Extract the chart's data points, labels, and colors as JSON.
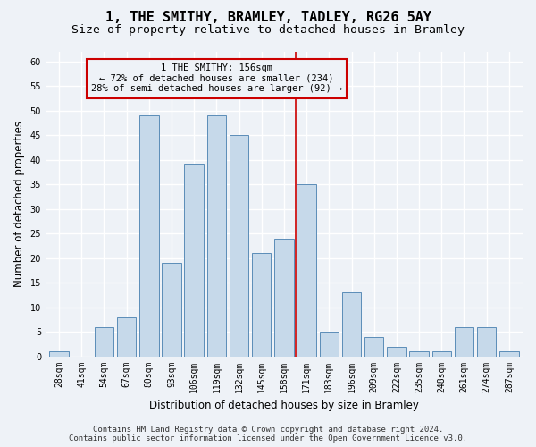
{
  "title1": "1, THE SMITHY, BRAMLEY, TADLEY, RG26 5AY",
  "title2": "Size of property relative to detached houses in Bramley",
  "xlabel": "Distribution of detached houses by size in Bramley",
  "ylabel": "Number of detached properties",
  "categories": [
    "28sqm",
    "41sqm",
    "54sqm",
    "67sqm",
    "80sqm",
    "93sqm",
    "106sqm",
    "119sqm",
    "132sqm",
    "145sqm",
    "158sqm",
    "171sqm",
    "183sqm",
    "196sqm",
    "209sqm",
    "222sqm",
    "235sqm",
    "248sqm",
    "261sqm",
    "274sqm",
    "287sqm"
  ],
  "values": [
    1,
    0,
    6,
    8,
    49,
    19,
    39,
    49,
    45,
    21,
    24,
    35,
    5,
    13,
    4,
    2,
    1,
    1,
    6,
    6,
    1
  ],
  "bar_color": "#c6d9ea",
  "bar_edge_color": "#5b8db8",
  "ylim": [
    0,
    62
  ],
  "yticks": [
    0,
    5,
    10,
    15,
    20,
    25,
    30,
    35,
    40,
    45,
    50,
    55,
    60
  ],
  "vline_x": 10.5,
  "marker_label": "1 THE SMITHY: 156sqm",
  "marker_line1": "← 72% of detached houses are smaller (234)",
  "marker_line2": "28% of semi-detached houses are larger (92) →",
  "annotation_box_color": "#cc0000",
  "vline_color": "#cc0000",
  "footer1": "Contains HM Land Registry data © Crown copyright and database right 2024.",
  "footer2": "Contains public sector information licensed under the Open Government Licence v3.0.",
  "bg_color": "#eef2f7",
  "grid_color": "#ffffff",
  "title_fontsize": 11,
  "subtitle_fontsize": 9.5,
  "axis_label_fontsize": 8.5,
  "tick_fontsize": 7,
  "annotation_fontsize": 7.5,
  "footer_fontsize": 6.5
}
